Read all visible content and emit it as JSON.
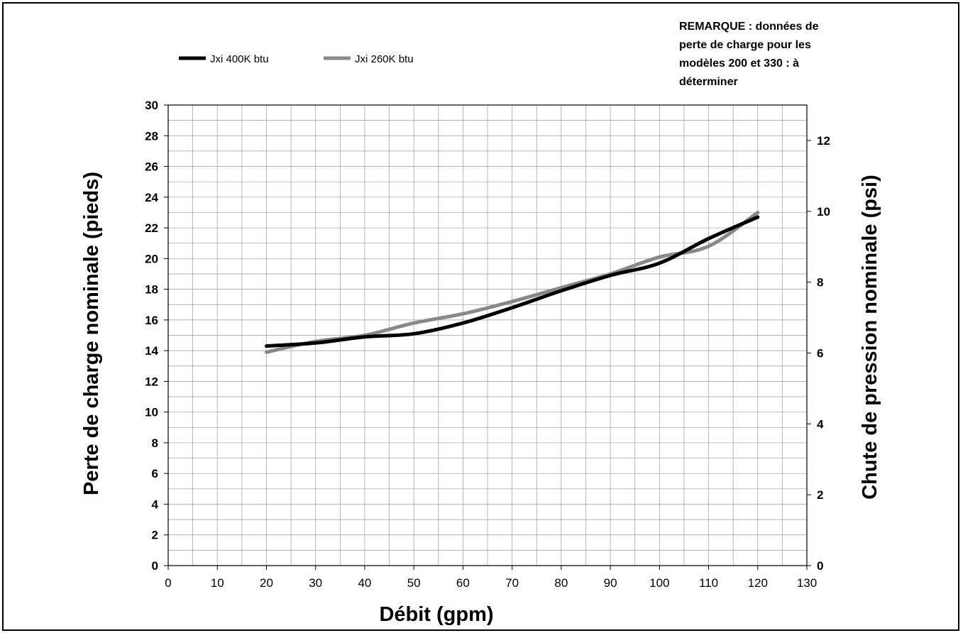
{
  "chart_data": {
    "type": "line",
    "xlabel": "Débit (gpm)",
    "ylabel": "Perte de charge nominale (pieds)",
    "y2label": "Chute de pression nominale (psi)",
    "xlim": [
      0,
      130
    ],
    "ylim": [
      0,
      30
    ],
    "y2lim": [
      0,
      13
    ],
    "x_ticks": [
      0,
      10,
      20,
      30,
      40,
      50,
      60,
      70,
      80,
      90,
      100,
      110,
      120,
      130
    ],
    "y_ticks": [
      0,
      2,
      4,
      6,
      8,
      10,
      12,
      14,
      16,
      18,
      20,
      22,
      24,
      26,
      28,
      30
    ],
    "y2_ticks": [
      0,
      2,
      4,
      6,
      8,
      10,
      12
    ],
    "grid": true,
    "legend_position": "top-left",
    "annotation": [
      "REMARQUE : données de",
      "perte de charge pour les",
      "modèles 200 et 330 : à",
      "déterminer"
    ],
    "series": [
      {
        "name": "Jxi 400K btu",
        "color": "#000000",
        "x": [
          20,
          30,
          40,
          50,
          60,
          70,
          80,
          90,
          100,
          110,
          120
        ],
        "y": [
          14.3,
          14.5,
          14.9,
          15.1,
          15.8,
          16.8,
          17.9,
          18.9,
          19.7,
          21.3,
          22.7
        ]
      },
      {
        "name": "Jxi 260K btu",
        "color": "#888888",
        "x": [
          20,
          30,
          40,
          50,
          60,
          70,
          80,
          90,
          100,
          110,
          120
        ],
        "y": [
          13.9,
          14.6,
          15.0,
          15.8,
          16.4,
          17.2,
          18.1,
          19.0,
          20.1,
          20.8,
          23.0
        ]
      }
    ]
  }
}
